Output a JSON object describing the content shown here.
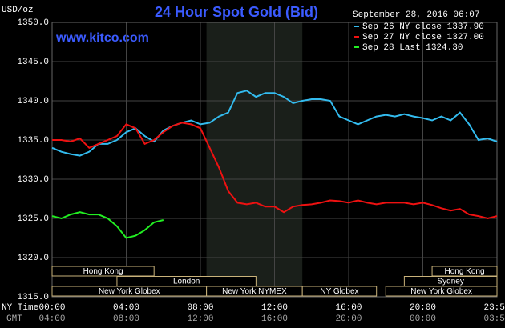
{
  "chart_data": {
    "type": "line",
    "title": "24 Hour Spot Gold (Bid)",
    "site": "www.kitco.com",
    "y_label": "USD/oz",
    "timestamp": "September 28, 2016 06:07",
    "x_label": "NY Time",
    "x2_label": "GMT",
    "xlim": [
      0,
      24
    ],
    "ylim": [
      1315,
      1350
    ],
    "xticks": [
      {
        "value": 0,
        "label": "00:00"
      },
      {
        "value": 4,
        "label": "04:00"
      },
      {
        "value": 8,
        "label": "08:00"
      },
      {
        "value": 12,
        "label": "12:00"
      },
      {
        "value": 16,
        "label": "16:00"
      },
      {
        "value": 20,
        "label": "20:00"
      },
      {
        "value": 24,
        "label": "23:59"
      }
    ],
    "x2ticks": [
      {
        "value": 0,
        "label": "04:00"
      },
      {
        "value": 4,
        "label": "08:00"
      },
      {
        "value": 8,
        "label": "12:00"
      },
      {
        "value": 12,
        "label": "16:00"
      },
      {
        "value": 16,
        "label": "20:00"
      },
      {
        "value": 20,
        "label": "00:00"
      },
      {
        "value": 24,
        "label": "03:59"
      }
    ],
    "yticks": [
      {
        "value": 1315,
        "label": "1315.0"
      },
      {
        "value": 1320,
        "label": "1320.0"
      },
      {
        "value": 1325,
        "label": "1325.0"
      },
      {
        "value": 1330,
        "label": "1330.0"
      },
      {
        "value": 1335,
        "label": "1335.0"
      },
      {
        "value": 1340,
        "label": "1340.0"
      },
      {
        "value": 1345,
        "label": "1345.0"
      },
      {
        "value": 1350,
        "label": "1350.0"
      }
    ],
    "grid": true,
    "highlight": [
      8.33,
      13.5
    ],
    "sessions": [
      {
        "name": "Hong Kong",
        "row": 0,
        "start": 0,
        "end": 5.5
      },
      {
        "name": "London",
        "row": 1,
        "start": 3.5,
        "end": 11
      },
      {
        "name": "New York Globex",
        "row": 2,
        "start": 0,
        "end": 8.33
      },
      {
        "name": "New York NYMEX",
        "row": 2,
        "start": 8.33,
        "end": 13.5
      },
      {
        "name": "NY Globex",
        "row": 2,
        "start": 13.5,
        "end": 17.5
      },
      {
        "name": "New York Globex",
        "row": 2,
        "start": 18,
        "end": 24
      },
      {
        "name": "Sydney",
        "row": 1,
        "start": 19,
        "end": 24
      },
      {
        "name": "Hong Kong",
        "row": 0,
        "start": 20.5,
        "end": 24
      }
    ],
    "series": [
      {
        "name": "Sep 26 NY close 1337.90",
        "color": "#33bbee",
        "x": [
          0,
          0.5,
          1,
          1.5,
          2,
          2.5,
          3,
          3.5,
          4,
          4.5,
          5,
          5.5,
          6,
          6.5,
          7,
          7.5,
          8,
          8.5,
          9,
          9.5,
          10,
          10.5,
          11,
          11.5,
          12,
          12.5,
          13,
          13.5,
          14,
          14.5,
          15,
          15.5,
          16,
          16.5,
          17,
          17.5,
          18,
          18.5,
          19,
          19.5,
          20,
          20.5,
          21,
          21.5,
          22,
          22.5,
          23,
          23.5,
          24
        ],
        "values": [
          1334.0,
          1333.5,
          1333.2,
          1333.0,
          1333.5,
          1334.5,
          1334.5,
          1335.0,
          1336.0,
          1336.5,
          1335.5,
          1334.8,
          1336.2,
          1336.8,
          1337.2,
          1337.5,
          1337.0,
          1337.2,
          1338.0,
          1338.5,
          1341.0,
          1341.3,
          1340.5,
          1341.0,
          1341.0,
          1340.5,
          1339.7,
          1340.0,
          1340.2,
          1340.2,
          1340.0,
          1338.0,
          1337.5,
          1337.0,
          1337.5,
          1338.0,
          1338.2,
          1338.0,
          1338.3,
          1338.0,
          1337.8,
          1337.5,
          1338.0,
          1337.5,
          1338.5,
          1337.0,
          1335.0,
          1335.2,
          1334.8
        ]
      },
      {
        "name": "Sep 27 NY close 1327.00",
        "color": "#ee1111",
        "x": [
          0,
          0.5,
          1,
          1.5,
          2,
          2.5,
          3,
          3.5,
          4,
          4.5,
          5,
          5.5,
          6,
          6.5,
          7,
          7.5,
          8,
          8.5,
          9,
          9.5,
          10,
          10.5,
          11,
          11.5,
          12,
          12.5,
          13,
          13.5,
          14,
          14.5,
          15,
          15.5,
          16,
          16.5,
          17,
          17.5,
          18,
          18.5,
          19,
          19.5,
          20,
          20.5,
          21,
          21.5,
          22,
          22.5,
          23,
          23.5,
          24
        ],
        "values": [
          1335.0,
          1335.0,
          1334.8,
          1335.2,
          1334.0,
          1334.5,
          1335.0,
          1335.5,
          1337.0,
          1336.5,
          1334.5,
          1335.0,
          1336.0,
          1336.8,
          1337.2,
          1337.0,
          1336.5,
          1334.0,
          1331.5,
          1328.5,
          1327.0,
          1326.8,
          1327.0,
          1326.5,
          1326.5,
          1325.8,
          1326.5,
          1326.7,
          1326.8,
          1327.0,
          1327.3,
          1327.2,
          1327.0,
          1327.3,
          1327.0,
          1326.8,
          1327.0,
          1327.0,
          1327.0,
          1326.8,
          1327.0,
          1326.7,
          1326.3,
          1326.0,
          1326.2,
          1325.5,
          1325.3,
          1325.0,
          1325.3
        ]
      },
      {
        "name": "Sep 28 Last 1324.30",
        "color": "#22ee22",
        "x": [
          0,
          0.5,
          1,
          1.5,
          2,
          2.5,
          3,
          3.5,
          4,
          4.5,
          5,
          5.5,
          6
        ],
        "values": [
          1325.3,
          1325.0,
          1325.5,
          1325.8,
          1325.5,
          1325.5,
          1325.0,
          1324.0,
          1322.5,
          1322.8,
          1323.5,
          1324.5,
          1324.8
        ]
      }
    ]
  }
}
